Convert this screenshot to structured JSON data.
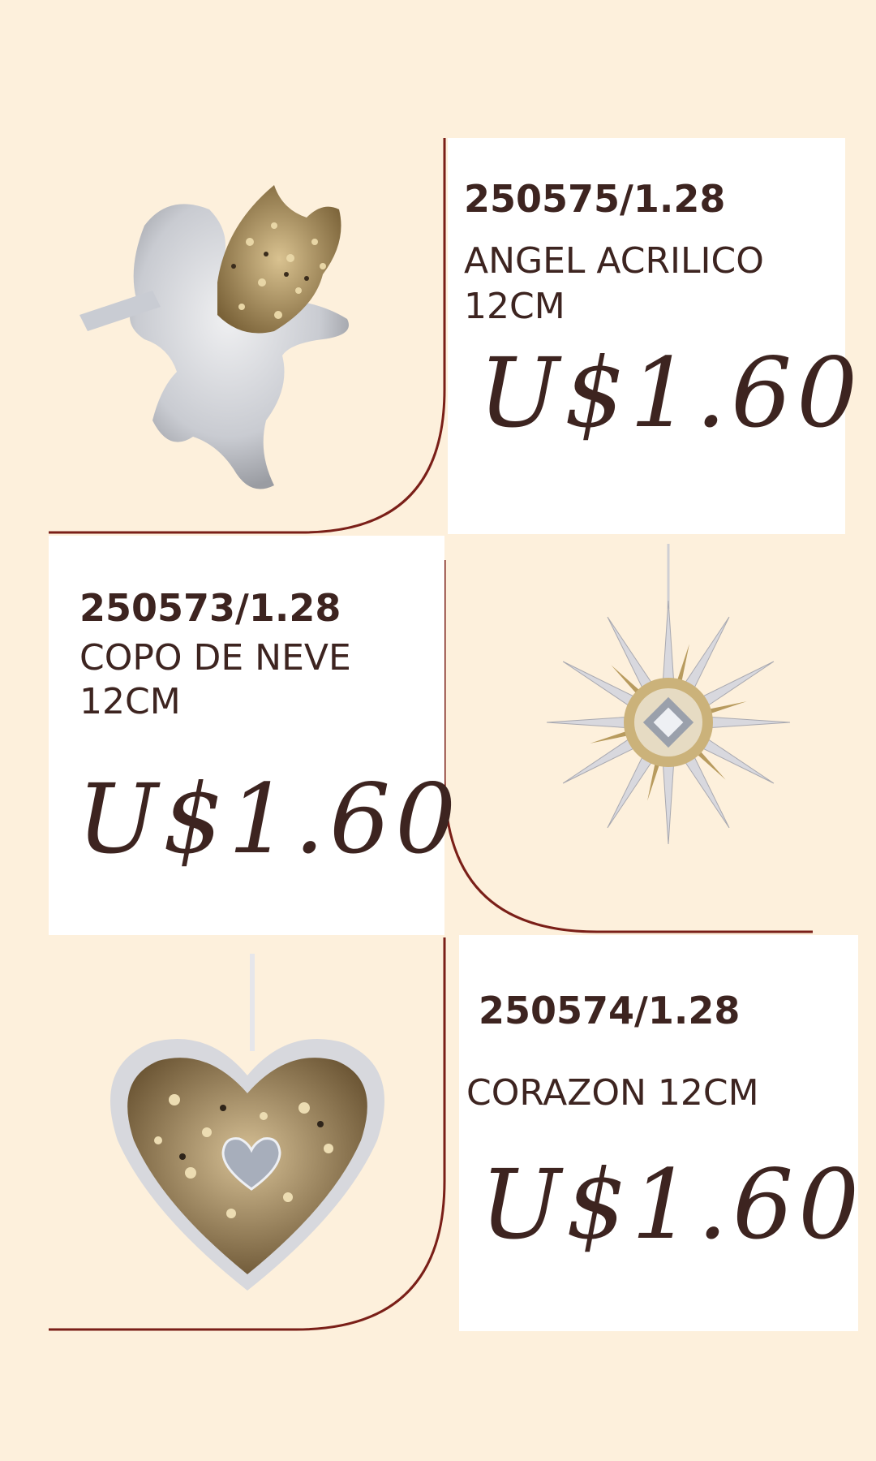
{
  "products": [
    {
      "code": "250575/1.28",
      "name_line1": "ANGEL ACRILICO",
      "name_line2": "12CM",
      "price": "U$1.60",
      "image_icon": "angel-ornament-icon"
    },
    {
      "code": "250573/1.28",
      "name_line1": "COPO DE NEVE",
      "name_line2": "12CM",
      "price": "U$1.60",
      "image_icon": "snowflake-ornament-icon"
    },
    {
      "code": "250574/1.28",
      "name_line1": "CORAZON 12CM",
      "name_line2": "",
      "price": "U$1.60",
      "image_icon": "heart-ornament-icon"
    }
  ],
  "colors": {
    "background": "#fdf0dc",
    "text": "#3d2420",
    "line": "#7a1f18",
    "card": "#ffffff"
  }
}
